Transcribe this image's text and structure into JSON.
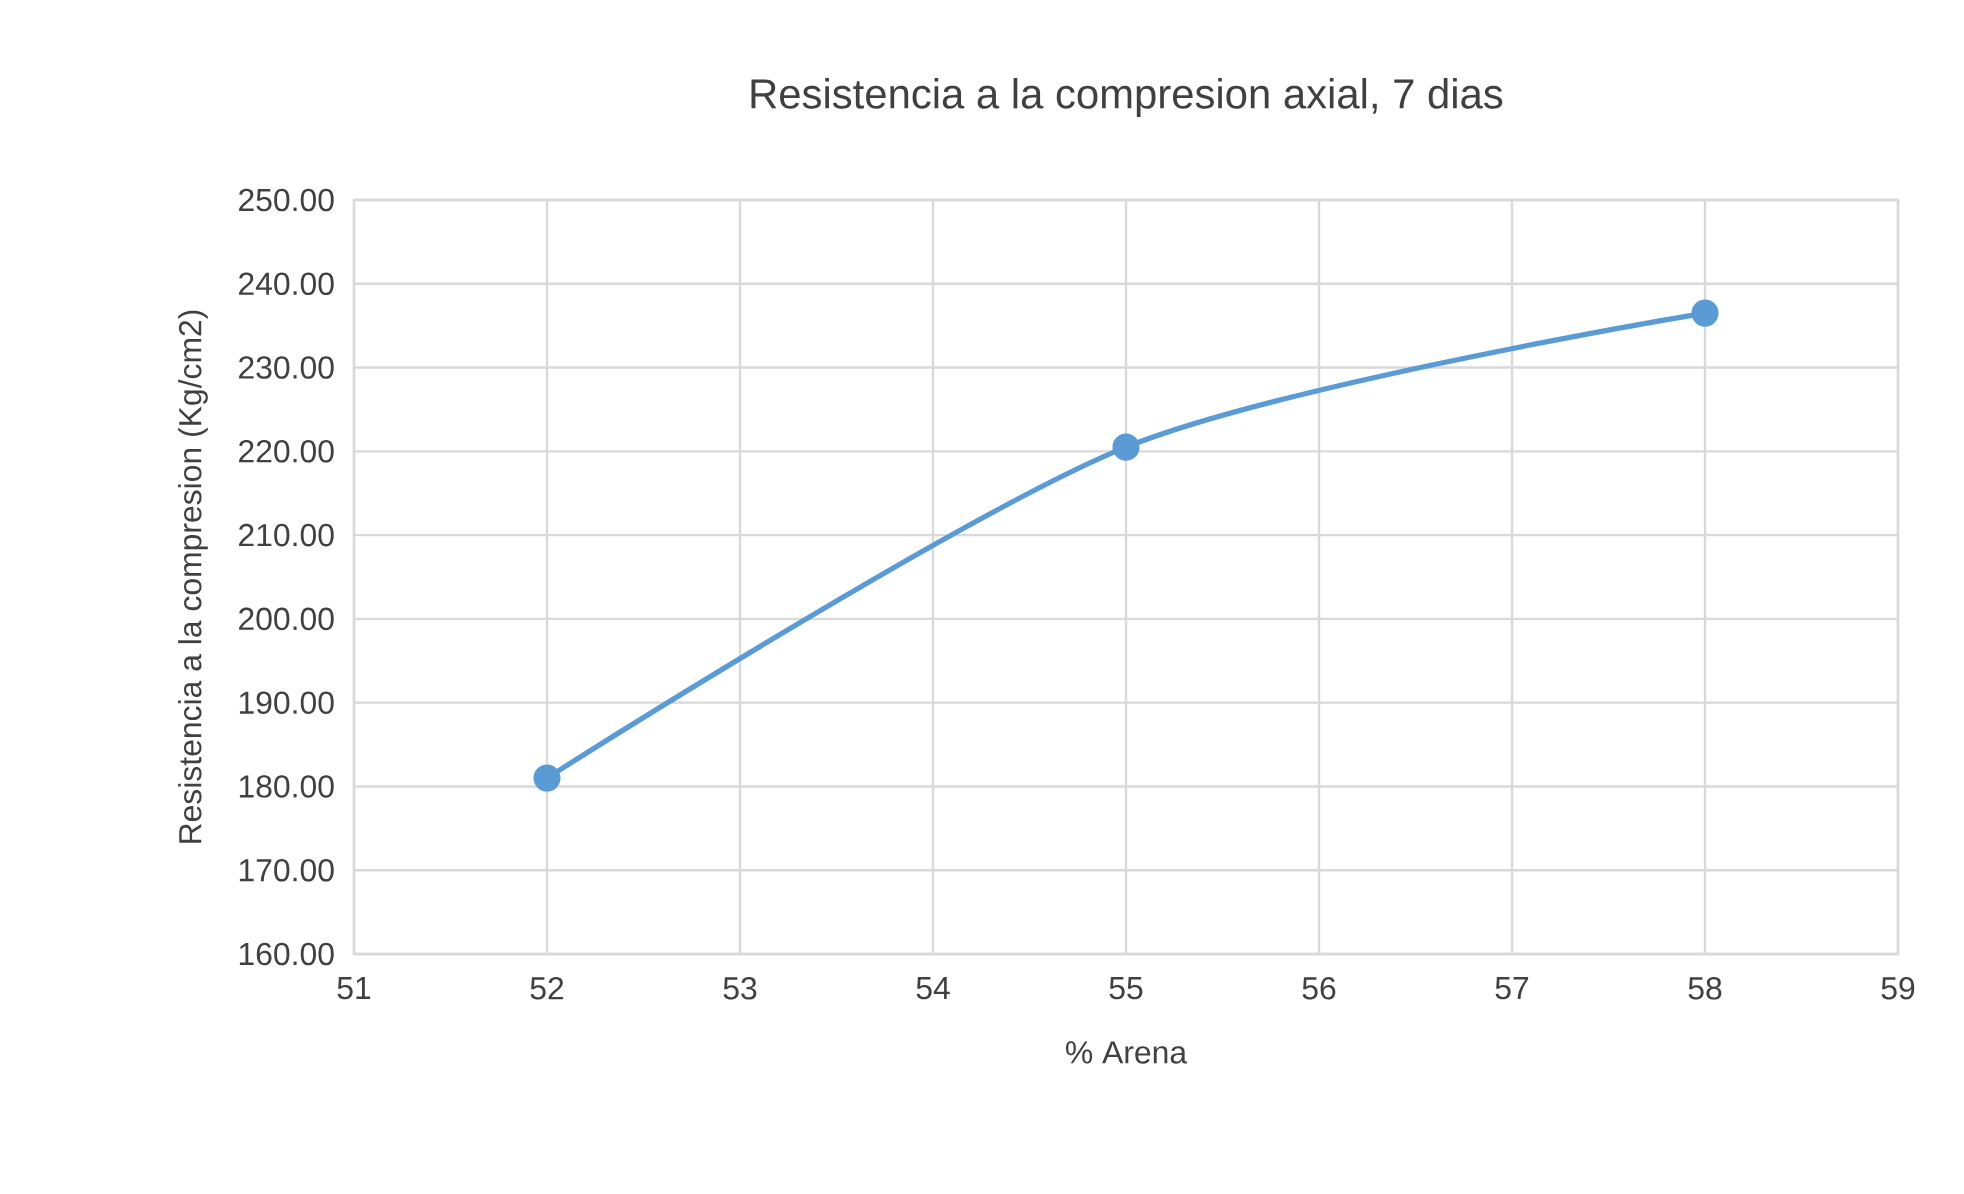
{
  "chart_data": {
    "type": "line",
    "title": "Resistencia a la compresion axial, 7 dias",
    "xlabel": "% Arena",
    "ylabel": "Resistencia a la compresion (Kg/cm2)",
    "x": [
      52,
      55,
      58
    ],
    "series": [
      {
        "color": "#5b9bd5",
        "values": [
          181,
          220.5,
          236.5
        ]
      }
    ],
    "xlim": [
      51,
      59
    ],
    "xticks": [
      51,
      52,
      53,
      54,
      55,
      56,
      57,
      58,
      59
    ],
    "ylim": [
      160,
      250
    ],
    "yticks": [
      {
        "value": 160,
        "label": "160.00"
      },
      {
        "value": 170,
        "label": "170.00"
      },
      {
        "value": 180,
        "label": "180.00"
      },
      {
        "value": 190,
        "label": "190.00"
      },
      {
        "value": 200,
        "label": "200.00"
      },
      {
        "value": 210,
        "label": "210.00"
      },
      {
        "value": 220,
        "label": "220.00"
      },
      {
        "value": 230,
        "label": "230.00"
      },
      {
        "value": 240,
        "label": "240.00"
      },
      {
        "value": 250,
        "label": "250.00"
      }
    ],
    "grid": true,
    "marker": "circle",
    "line_style": "solid"
  }
}
